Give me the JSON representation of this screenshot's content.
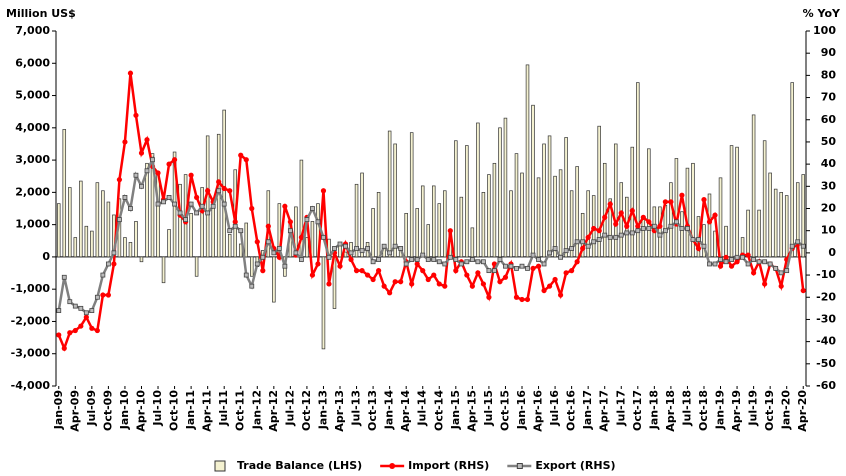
{
  "chart_data": {
    "type": "bar",
    "ylabel": "Million US$",
    "y2label": "% YoY",
    "categories": [
      "Jan-09",
      null,
      null,
      "Apr-09",
      null,
      null,
      "Jul-09",
      null,
      null,
      "Oct-09",
      null,
      null,
      "Jan-10",
      null,
      null,
      "Apr-10",
      null,
      null,
      "Jul-10",
      null,
      null,
      "Oct-10",
      null,
      null,
      "Jan-11",
      null,
      null,
      "Apr-11",
      null,
      null,
      "Jul-11",
      null,
      null,
      "Oct-11",
      null,
      null,
      "Jan-12",
      null,
      null,
      "Apr-12",
      null,
      null,
      "Jul-12",
      null,
      null,
      "Oct-12",
      null,
      null,
      "Jan-13",
      null,
      null,
      "Apr-13",
      null,
      null,
      "Jul-13",
      null,
      null,
      "Oct-13",
      null,
      null,
      "Jan-14",
      null,
      null,
      "Apr-14",
      null,
      null,
      "Jul-14",
      null,
      null,
      "Oct-14",
      null,
      null,
      "Jan-15",
      null,
      null,
      "Apr-15",
      null,
      null,
      "Jul-15",
      null,
      null,
      "Oct-15",
      null,
      null,
      "Jan-16",
      null,
      null,
      "Apr-16",
      null,
      null,
      "Jul-16",
      null,
      null,
      "Oct-16",
      null,
      null,
      "Jan-17",
      null,
      null,
      "Apr-17",
      null,
      null,
      "Jul-17",
      null,
      null,
      "Oct-17",
      null,
      null,
      "Jan-18",
      null,
      null,
      "Apr-18",
      null,
      null,
      "Jul-18",
      null,
      null,
      "Oct-18",
      null,
      null,
      "Jan-19",
      null,
      null,
      "Apr-19",
      null,
      null,
      "Jul-19",
      null,
      null,
      "Oct-19",
      null,
      null,
      "Jan-20",
      null,
      null,
      "Apr-20"
    ],
    "series": [
      {
        "name": "Trade Balance (LHS)",
        "type": "bar",
        "color": "#f4f1d0",
        "values": [
          1650,
          3950,
          2150,
          600,
          2350,
          950,
          800,
          2300,
          2050,
          1700,
          1300,
          1800,
          600,
          450,
          1100,
          -150,
          2900,
          3200,
          2650,
          -800,
          850,
          3250,
          2250,
          2550,
          1350,
          -600,
          2150,
          3750,
          1750,
          3800,
          4550,
          700,
          2700,
          400,
          1050,
          -600,
          -300,
          200,
          2050,
          -1400,
          1650,
          -600,
          1100,
          1550,
          3000,
          600,
          1100,
          1650,
          -2850,
          550,
          -1600,
          450,
          150,
          450,
          2250,
          2600,
          450,
          1500,
          2000,
          350,
          3900,
          3500,
          250,
          1350,
          3850,
          1500,
          2200,
          1000,
          2200,
          1650,
          2050,
          750,
          3600,
          1850,
          3450,
          900,
          4150,
          2000,
          2550,
          2900,
          4000,
          4300,
          2050,
          3200,
          2600,
          5950,
          4700,
          2450,
          3500,
          3750,
          2500,
          2700,
          3700,
          2050,
          2800,
          1350,
          2050,
          1900,
          4050,
          2900,
          1800,
          3500,
          2300,
          1850,
          3400,
          5400,
          1250,
          3350,
          1550,
          1550,
          1600,
          2300,
          3050,
          1400,
          2750,
          2900,
          1250,
          1000,
          1950,
          800,
          2450,
          950,
          3450,
          3400,
          600,
          1450,
          4400,
          1450,
          3600,
          2600,
          2100,
          2000,
          1900,
          5400,
          2300,
          2550
        ]
      },
      {
        "name": "Import (RHS)",
        "type": "line",
        "axis": "y2",
        "color": "#ff0000",
        "values": [
          -37,
          -43,
          -36,
          -35,
          -33,
          -29,
          -34,
          -35,
          -19,
          -19,
          -5,
          33,
          50,
          81,
          62,
          45,
          51,
          39,
          36,
          24,
          40,
          42,
          17,
          14,
          35,
          25,
          19,
          28,
          23,
          32,
          29,
          28,
          14,
          44,
          42,
          20,
          5,
          -8,
          12,
          2,
          -2,
          21,
          14,
          -1,
          7,
          16,
          -10,
          -5,
          28,
          -14,
          0,
          -6,
          4,
          -3,
          -8,
          -8,
          -10,
          -12,
          -8,
          -15,
          -18,
          -13,
          -13,
          -4,
          -14,
          -5,
          -8,
          -12,
          -10,
          -14,
          -15,
          10,
          -8,
          -4,
          -10,
          -15,
          -9,
          -14,
          -20,
          -5,
          -13,
          -11,
          -5,
          -20,
          -21,
          -21,
          -7,
          -6,
          -17,
          -15,
          -12,
          -19,
          -9,
          -8,
          -4,
          2,
          7,
          11,
          10,
          16,
          22,
          13,
          18,
          12,
          19,
          12,
          16,
          14,
          10,
          12,
          23,
          23,
          13,
          26,
          12,
          6,
          2,
          24,
          14,
          17,
          -6,
          -2,
          -6,
          -4,
          -1,
          -1,
          -9,
          -4,
          -14,
          -5,
          -7,
          -15,
          -3,
          2,
          4,
          -17
        ]
      },
      {
        "name": "Export (RHS)",
        "type": "line",
        "axis": "y2",
        "color": "#808080",
        "values": [
          -26,
          -11,
          -22,
          -24,
          -25,
          -27,
          -26,
          -20,
          -10,
          -5,
          0,
          15,
          25,
          20,
          35,
          30,
          37,
          42,
          22,
          23,
          25,
          22,
          18,
          15,
          22,
          18,
          21,
          18,
          21,
          28,
          22,
          10,
          12,
          10,
          -10,
          -15,
          -5,
          -2,
          5,
          0,
          2,
          -6,
          10,
          0,
          -3,
          15,
          20,
          14,
          7,
          -2,
          2,
          4,
          3,
          0,
          2,
          1,
          2,
          -4,
          -3,
          3,
          0,
          3,
          2,
          -5,
          -3,
          -3,
          -1,
          -3,
          -3,
          -4,
          -5,
          -2,
          -3,
          -5,
          -4,
          -3,
          -4,
          -4,
          -8,
          -8,
          -3,
          -6,
          -6,
          -7,
          -6,
          -7,
          -1,
          -3,
          -5,
          0,
          2,
          -2,
          1,
          2,
          5,
          5,
          3,
          5,
          6,
          8,
          7,
          7,
          8,
          9,
          9,
          10,
          11,
          11,
          12,
          8,
          10,
          12,
          14,
          11,
          11,
          6,
          6,
          3,
          -5,
          -5,
          -3,
          -4,
          -3,
          -2,
          -2,
          -5,
          -3,
          -4,
          -4,
          -5,
          -7,
          -9,
          -8,
          3,
          5,
          3
        ]
      }
    ],
    "ylim": [
      -4000,
      7000
    ],
    "yticks": [
      {
        "value": -4000,
        "label": "-4,000"
      },
      {
        "value": -3000,
        "label": "-3,000"
      },
      {
        "value": -2000,
        "label": "-2,000"
      },
      {
        "value": -1000,
        "label": "-1,000"
      },
      0,
      {
        "value": 1000,
        "label": "1,000"
      },
      {
        "value": 2000,
        "label": "2,000"
      },
      {
        "value": 3000,
        "label": "3,000"
      },
      {
        "value": 4000,
        "label": "4,000"
      },
      {
        "value": 5000,
        "label": "5,000"
      },
      {
        "value": 6000,
        "label": "6,000"
      },
      {
        "value": 7000,
        "label": "7,000"
      }
    ],
    "y2lim": [
      -60,
      100
    ],
    "y2ticks": [
      -60,
      -50,
      -40,
      -30,
      -20,
      -10,
      0,
      10,
      20,
      30,
      40,
      50,
      60,
      70,
      80,
      90,
      100
    ],
    "legend": "bottom"
  }
}
